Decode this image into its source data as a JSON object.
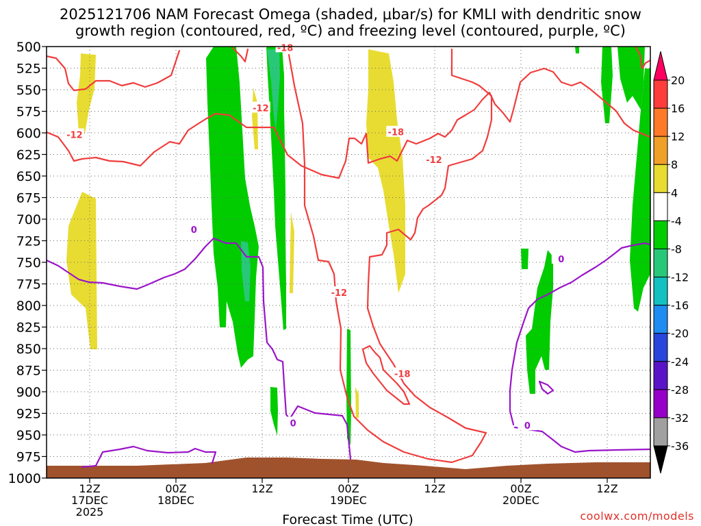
{
  "title": {
    "line1": "2025121706 NAM Forecast Omega (shaded, μbar/s) for KMLI with dendritic snow",
    "line2": "growth region (contoured, red, ºC) and freezing level (contoured, purple, ºC)"
  },
  "watermark": "coolwx.com/models",
  "chart_data": {
    "type": "heatmap",
    "title": "2025121706 NAM Forecast Omega (shaded, μbar/s) for KMLI with dendritic snow growth region (contoured, red, ºC) and freezing level (contoured, purple, ºC)",
    "xlabel": "Forecast Time (UTC)",
    "ylabel": "",
    "x_range_hours": [
      0,
      84
    ],
    "y_range_hpa": [
      1000,
      500
    ],
    "y_ticks": [
      "500",
      "525",
      "550",
      "575",
      "600",
      "625",
      "650",
      "675",
      "700",
      "725",
      "750",
      "775",
      "800",
      "825",
      "850",
      "875",
      "900",
      "925",
      "950",
      "975",
      "1000"
    ],
    "x_ticks": [
      {
        "hour": 6,
        "line1": "12Z",
        "line2": "17DEC",
        "line3": "2025"
      },
      {
        "hour": 18,
        "line1": "00Z",
        "line2": "18DEC",
        "line3": ""
      },
      {
        "hour": 30,
        "line1": "12Z",
        "line2": "",
        "line3": ""
      },
      {
        "hour": 42,
        "line1": "00Z",
        "line2": "19DEC",
        "line3": ""
      },
      {
        "hour": 54,
        "line1": "12Z",
        "line2": "",
        "line3": ""
      },
      {
        "hour": 66,
        "line1": "00Z",
        "line2": "20DEC",
        "line3": ""
      },
      {
        "hour": 78,
        "line1": "12Z",
        "line2": "",
        "line3": ""
      }
    ],
    "colorbar": {
      "labels": [
        "20",
        "16",
        "12",
        "8",
        "4",
        "-4",
        "-8",
        "-12",
        "-16",
        "-20",
        "-24",
        "-28",
        "-32",
        "-36"
      ],
      "colors": [
        "#ff0060",
        "#ff3c3c",
        "#ff7a28",
        "#f0a028",
        "#e8dc32",
        "#ffffff",
        "#00cc00",
        "#28c878",
        "#14c0c0",
        "#1e8cf0",
        "#2846dc",
        "#5a14c8",
        "#9600c8",
        "#a0a0a0",
        "#000000"
      ]
    },
    "contour_labels": [
      {
        "text": "-12",
        "color": "#f03c3c",
        "h": 3.9,
        "p": 602
      },
      {
        "text": "-12",
        "color": "#f03c3c",
        "h": 29.8,
        "p": 571
      },
      {
        "text": "-18",
        "color": "#f03c3c",
        "h": 33.2,
        "p": 501
      },
      {
        "text": "-18",
        "color": "#f03c3c",
        "h": 48.6,
        "p": 599
      },
      {
        "text": "-12",
        "color": "#f03c3c",
        "h": 53.9,
        "p": 631
      },
      {
        "text": "-12",
        "color": "#f03c3c",
        "h": 40.7,
        "p": 785
      },
      {
        "text": "-18",
        "color": "#f03c3c",
        "h": 49.5,
        "p": 879
      },
      {
        "text": "0",
        "color": "#9a14c8",
        "h": 20.5,
        "p": 712
      },
      {
        "text": "0",
        "color": "#9a14c8",
        "h": 34.3,
        "p": 936
      },
      {
        "text": "0",
        "color": "#9a14c8",
        "h": 66.9,
        "p": 939
      },
      {
        "text": "0",
        "color": "#9a14c8",
        "h": 71.6,
        "p": 746
      }
    ]
  }
}
